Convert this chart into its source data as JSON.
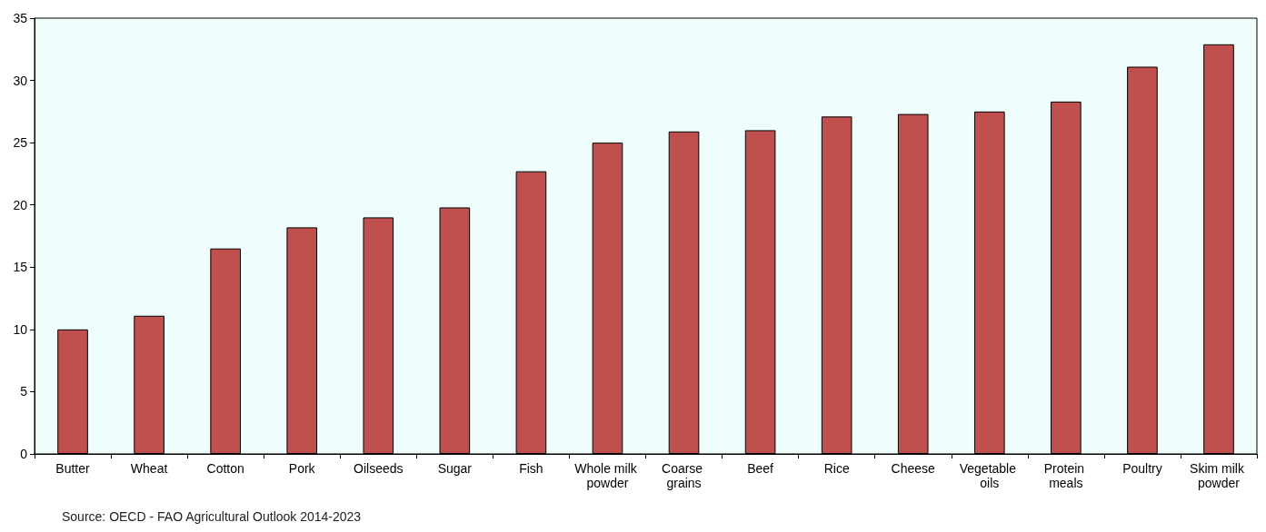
{
  "chart_data": {
    "type": "bar",
    "categories": [
      "Butter",
      "Wheat",
      "Cotton",
      "Pork",
      "Oilseeds",
      "Sugar",
      "Fish",
      "Whole milk powder",
      "Coarse grains",
      "Beef",
      "Rice",
      "Cheese",
      "Vegetable oils",
      "Protein meals",
      "Poultry",
      "Skim milk powder"
    ],
    "values": [
      10.0,
      11.1,
      16.5,
      18.2,
      19.0,
      19.8,
      22.7,
      25.0,
      25.9,
      26.0,
      27.1,
      27.3,
      27.5,
      28.3,
      31.1,
      32.9
    ],
    "color": "#c0504d",
    "ylim": [
      0,
      35
    ],
    "yticks": [
      0,
      5,
      10,
      15,
      20,
      25,
      30,
      35
    ],
    "annotations": [
      "Source: OECD - FAO Agricultural Outlook 2014-2023"
    ]
  }
}
